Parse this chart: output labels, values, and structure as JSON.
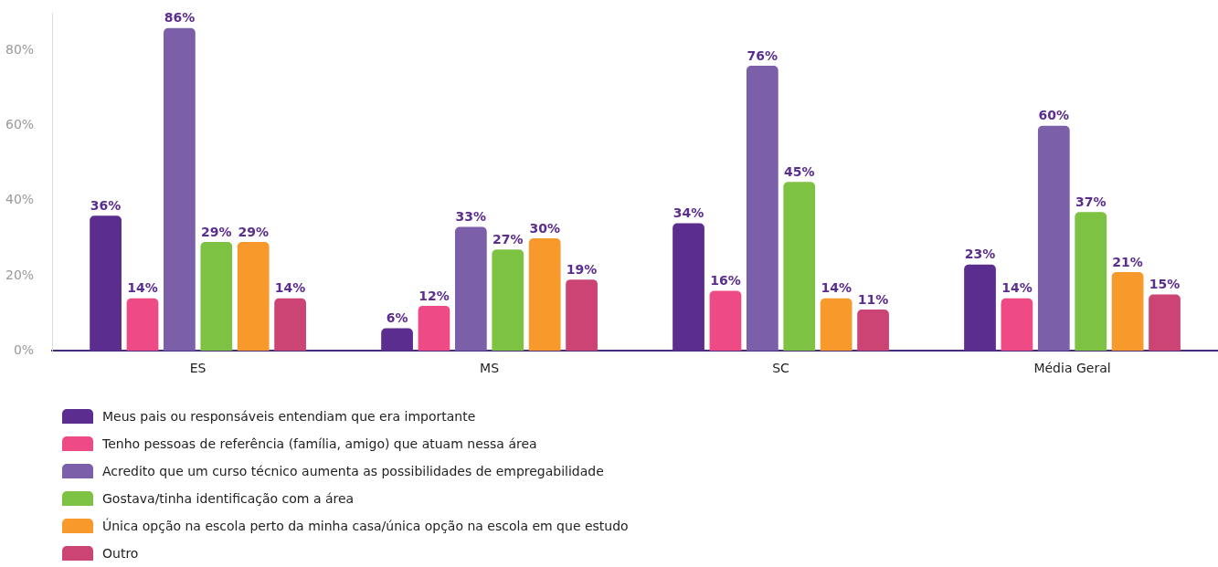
{
  "chart_data": {
    "type": "bar",
    "categories": [
      "ES",
      "MS",
      "SC",
      "Média Geral"
    ],
    "series": [
      {
        "name": "Meus pais ou responsáveis entendiam que era importante",
        "color": "#5b2d8e",
        "values": [
          36,
          6,
          34,
          23
        ],
        "value_labels": [
          "36%",
          "6%",
          "34%",
          "23%"
        ]
      },
      {
        "name": "Tenho pessoas de referência (família, amigo) que atuam nessa área",
        "color": "#ee4a86",
        "values": [
          14,
          12,
          16,
          14
        ],
        "value_labels": [
          "14%",
          "12%",
          "16%",
          "14%"
        ]
      },
      {
        "name": "Acredito que um curso técnico aumenta as possibilidades de empregabilidade",
        "color": "#7b5fa8",
        "values": [
          86,
          33,
          76,
          60
        ],
        "value_labels": [
          "86%",
          "33%",
          "76%",
          "60%"
        ]
      },
      {
        "name": "Gostava/tinha identificação com a área",
        "color": "#7dc242",
        "values": [
          29,
          27,
          45,
          37
        ],
        "value_labels": [
          "29%",
          "27%",
          "45%",
          "37%"
        ]
      },
      {
        "name": "Única opção na escola perto da minha casa/única opção na escola em que estudo",
        "color": "#f7992b",
        "values": [
          29,
          30,
          14,
          21
        ],
        "value_labels": [
          "29%",
          "30%",
          "14%",
          "21%"
        ]
      },
      {
        "name": "Outro",
        "color": "#cc4474",
        "values": [
          14,
          19,
          11,
          15
        ],
        "value_labels": [
          "14%",
          "19%",
          "11%",
          "15%"
        ]
      }
    ],
    "ylim": [
      0,
      90
    ],
    "yticks": [
      {
        "value": 0,
        "label": "0%"
      },
      {
        "value": 20,
        "label": "20%"
      },
      {
        "value": 40,
        "label": "40%"
      },
      {
        "value": 60,
        "label": "60%"
      },
      {
        "value": 80,
        "label": "80%"
      }
    ],
    "grid": false,
    "legend": "bottom left"
  }
}
